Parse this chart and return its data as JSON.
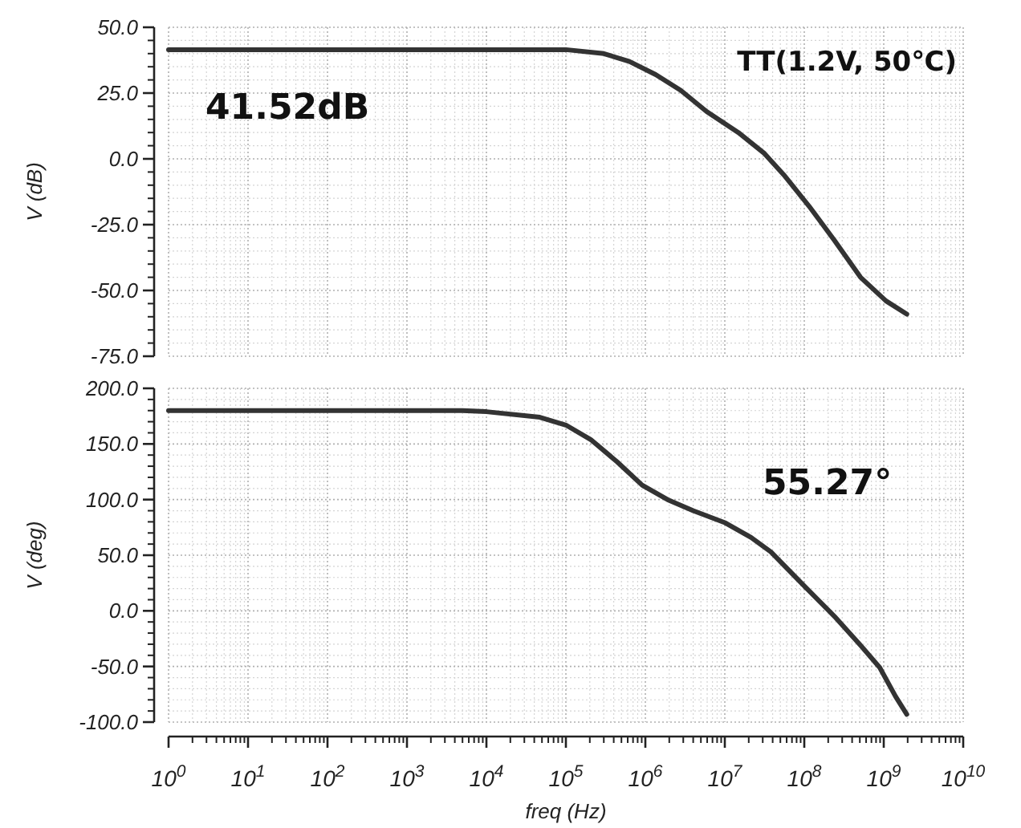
{
  "chart_data": [
    {
      "type": "line",
      "ylabel": "V (dB)",
      "log": "x",
      "grid": true,
      "tick_labels": "y",
      "line_style": "solid",
      "xlim": [
        1,
        10000000000
      ],
      "xticks": [
        1,
        10,
        100,
        1000,
        10000,
        100000,
        1000000,
        10000000,
        100000000,
        1000000000,
        10000000000
      ],
      "ylim": [
        -75,
        50
      ],
      "yticks": [
        {
          "value": -75,
          "label": "-75.0"
        },
        {
          "value": -50,
          "label": "-50.0"
        },
        {
          "value": -25,
          "label": "-25.0"
        },
        {
          "value": 0,
          "label": "0.0"
        },
        {
          "value": 25,
          "label": "25.0"
        },
        {
          "value": 50,
          "label": "50.0"
        }
      ],
      "annotations": [
        "41.52dB",
        "TT(1.2V, 50℃)"
      ],
      "series": [
        {
          "color": "#333333",
          "x": [
            1,
            100000,
            300000,
            630000,
            1350000,
            2800000,
            5900000,
            14800000,
            31600000,
            55000000,
            115000000,
            240000000,
            510000000,
            1070000000,
            1950000000
          ],
          "values": [
            41.5,
            41.5,
            40,
            37,
            32,
            26,
            18,
            10,
            2,
            -6,
            -18,
            -31,
            -45,
            -54,
            -59
          ]
        }
      ]
    },
    {
      "type": "line",
      "ylabel": "V (deg)",
      "xlabel": "freq (Hz)",
      "log": "x",
      "grid": true,
      "line_style": "solid",
      "xlim": [
        1,
        10000000000
      ],
      "xticks": [
        {
          "value": 1,
          "label": "10$^{0}$"
        },
        {
          "value": 10,
          "label": "10$^{1}$"
        },
        {
          "value": 100,
          "label": "10$^{2}$"
        },
        {
          "value": 1000,
          "label": "10$^{3}$"
        },
        {
          "value": 10000,
          "label": "10$^{4}$"
        },
        {
          "value": 100000,
          "label": "10$^{5}$"
        },
        {
          "value": 1000000,
          "label": "10$^{6}$"
        },
        {
          "value": 10000000,
          "label": "10$^{7}$"
        },
        {
          "value": 100000000,
          "label": "10$^{8}$"
        },
        {
          "value": 1000000000,
          "label": "10$^{9}$"
        },
        {
          "value": 10000000000,
          "label": "10$^{10}$"
        }
      ],
      "ylim": [
        -100,
        200
      ],
      "yticks": [
        {
          "value": -100,
          "label": "-100.0"
        },
        {
          "value": -50,
          "label": "-50.0"
        },
        {
          "value": 0,
          "label": "0.0"
        },
        {
          "value": 50,
          "label": "50.0"
        },
        {
          "value": 100,
          "label": "100.0"
        },
        {
          "value": 150,
          "label": "150.0"
        },
        {
          "value": 200,
          "label": "200.0"
        }
      ],
      "annotations": [
        "55.27°"
      ],
      "series": [
        {
          "color": "#333333",
          "x": [
            1,
            5000,
            10000,
            47000,
            100000,
            205000,
            440000,
            910000,
            1900000,
            4000000,
            10200000,
            21400000,
            38000000,
            95000000,
            240000000,
            510000000,
            890000000,
            1410000000,
            1950000000
          ],
          "values": [
            180,
            180,
            179,
            174,
            167,
            154,
            134,
            113,
            100,
            90,
            79,
            66,
            53,
            24,
            -5,
            -31,
            -51,
            -77,
            -93
          ]
        }
      ]
    }
  ]
}
